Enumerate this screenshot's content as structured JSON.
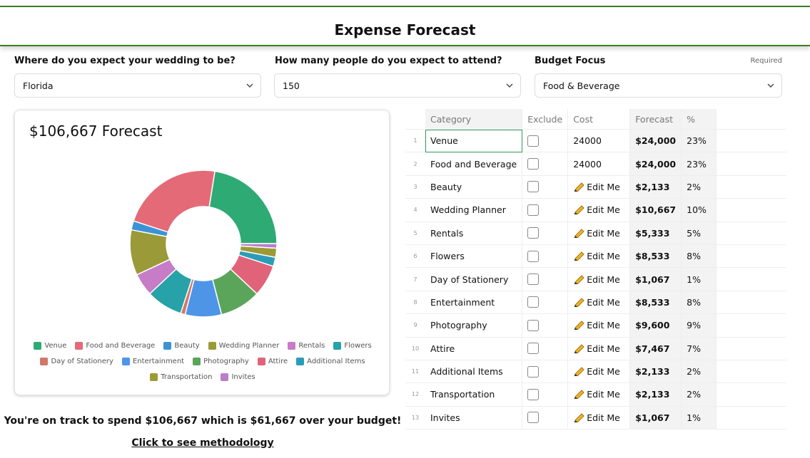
{
  "header": {
    "title": "Expense Forecast"
  },
  "form": [
    {
      "label": "Where do you expect your wedding to be?",
      "value": "Florida"
    },
    {
      "label": "How many people do you expect to attend?",
      "value": "150"
    },
    {
      "label": "Budget Focus",
      "note": "Required",
      "value": "Food & Beverage"
    }
  ],
  "chart_data": {
    "type": "pie",
    "title": "$106,667 Forecast",
    "categories": [
      "Venue",
      "Food and Beverage",
      "Beauty",
      "Wedding Planner",
      "Rentals",
      "Flowers",
      "Day of Stationery",
      "Entertainment",
      "Photography",
      "Attire",
      "Additional Items",
      "Transportation",
      "Invites"
    ],
    "values": [
      24000,
      24000,
      2133,
      10667,
      5333,
      8533,
      1067,
      8533,
      9600,
      7467,
      2133,
      2133,
      1067
    ],
    "colors": [
      "#2eaa74",
      "#e46a78",
      "#3b93d6",
      "#9a9a38",
      "#c77cc7",
      "#27a2a8",
      "#d2776a",
      "#4e95e8",
      "#5aa55a",
      "#e0637a",
      "#2b9cb8",
      "#9c9a36",
      "#b97fcb"
    ],
    "legend": "bottom"
  },
  "table": {
    "columns": [
      "Category",
      "Exclude",
      "Cost",
      "Forecast",
      "%"
    ],
    "rows": [
      [
        "1",
        "Venue",
        "24000",
        "$24,000",
        "23%"
      ],
      [
        "2",
        "Food and Beverage",
        "24000",
        "$24,000",
        "23%"
      ],
      [
        "3",
        "Beauty",
        "Edit Me",
        "$2,133",
        "2%"
      ],
      [
        "4",
        "Wedding Planner",
        "Edit Me",
        "$10,667",
        "10%"
      ],
      [
        "5",
        "Rentals",
        "Edit Me",
        "$5,333",
        "5%"
      ],
      [
        "6",
        "Flowers",
        "Edit Me",
        "$8,533",
        "8%"
      ],
      [
        "7",
        "Day of Stationery",
        "Edit Me",
        "$1,067",
        "1%"
      ],
      [
        "8",
        "Entertainment",
        "Edit Me",
        "$8,533",
        "8%"
      ],
      [
        "9",
        "Photography",
        "Edit Me",
        "$9,600",
        "9%"
      ],
      [
        "10",
        "Attire",
        "Edit Me",
        "$7,467",
        "7%"
      ],
      [
        "11",
        "Additional Items",
        "Edit Me",
        "$2,133",
        "2%"
      ],
      [
        "12",
        "Transportation",
        "Edit Me",
        "$2,133",
        "2%"
      ],
      [
        "13",
        "Invites",
        "Edit Me",
        "$1,067",
        "1%"
      ]
    ]
  },
  "footer": {
    "summary": "You're on track to spend $106,667 which is $61,667 over your budget!",
    "link": "Click to see methodology"
  }
}
